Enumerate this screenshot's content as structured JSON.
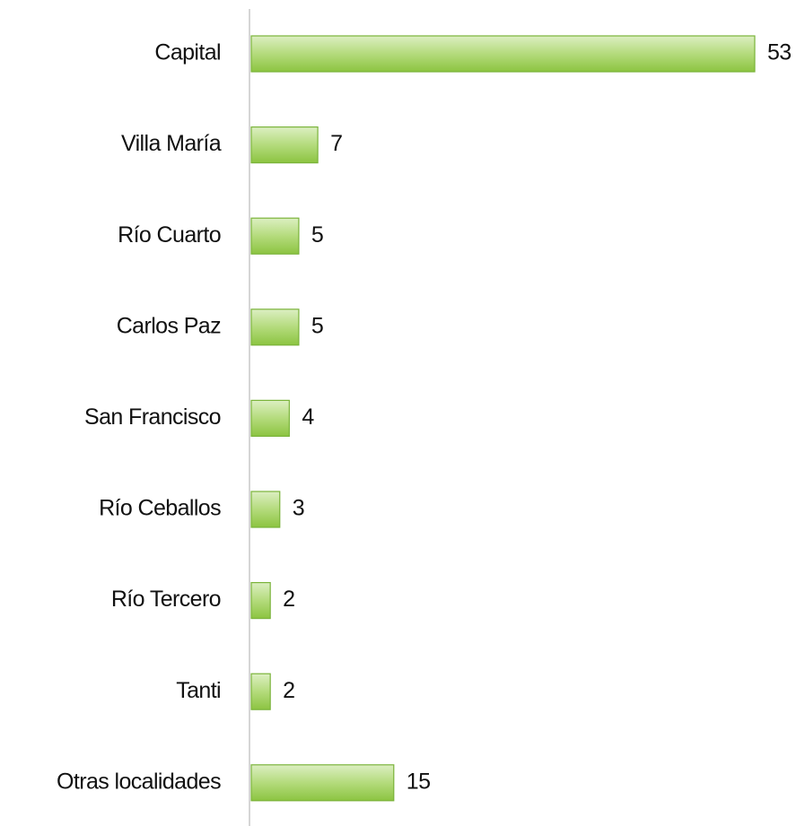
{
  "chart_data": {
    "type": "bar",
    "orientation": "horizontal",
    "categories": [
      "Capital",
      "Villa María",
      "Río Cuarto",
      "Carlos Paz",
      "San Francisco",
      "Río Ceballos",
      "Río Tercero",
      "Tanti",
      "Otras localidades"
    ],
    "values": [
      53,
      7,
      5,
      5,
      4,
      3,
      2,
      2,
      15
    ],
    "color": "#92c94a"
  }
}
